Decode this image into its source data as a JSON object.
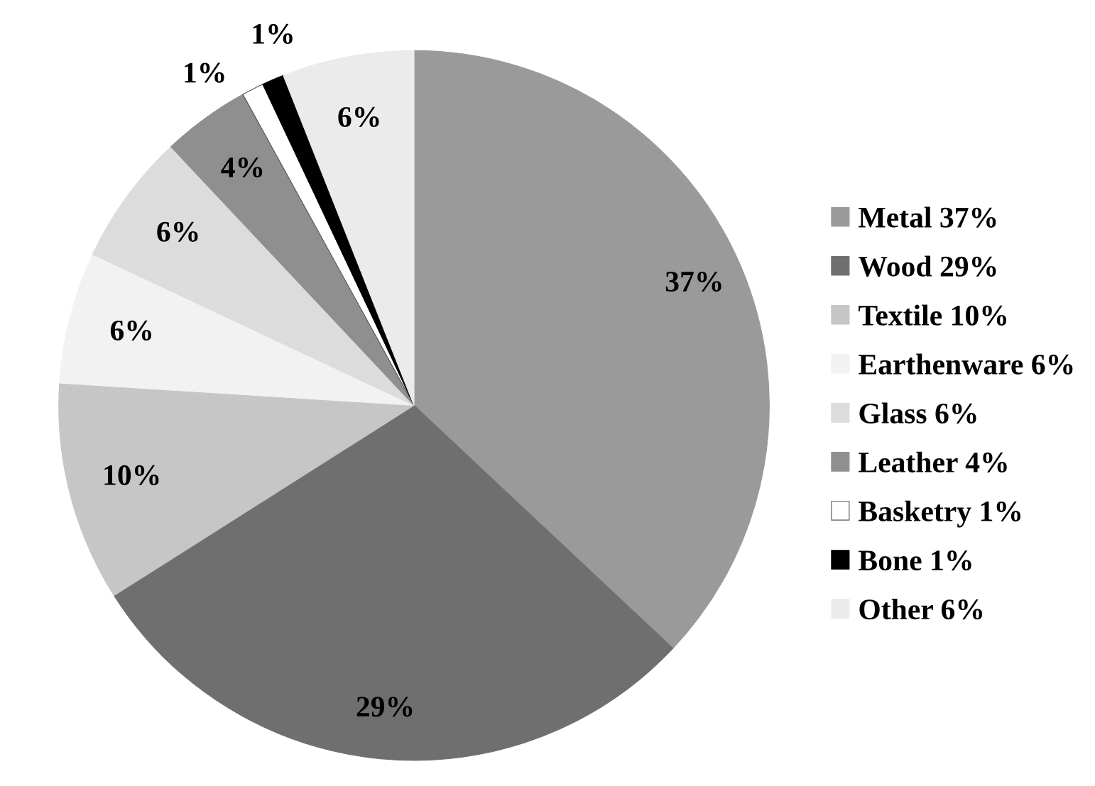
{
  "chart_data": {
    "type": "pie",
    "categories": [
      "Metal 37%",
      "Wood 29%",
      "Textile 10%",
      "Earthenware 6%",
      "Glass 6%",
      "Leather 4%",
      "Basketry 1%",
      "Bone 1%",
      "Other 6%"
    ],
    "values": [
      37,
      29,
      10,
      6,
      6,
      4,
      1,
      1,
      6
    ],
    "value_labels": [
      "37%",
      "29%",
      "10%",
      "6%",
      "6%",
      "4%",
      "1%",
      "1%",
      "6%"
    ],
    "colors": [
      "#9a9a9a",
      "#6f6f6f",
      "#c6c6c6",
      "#f2f2f2",
      "#dcdcdc",
      "#8f8f8f",
      "#ffffff",
      "#000000",
      "#ebebeb"
    ],
    "legend": "right"
  }
}
